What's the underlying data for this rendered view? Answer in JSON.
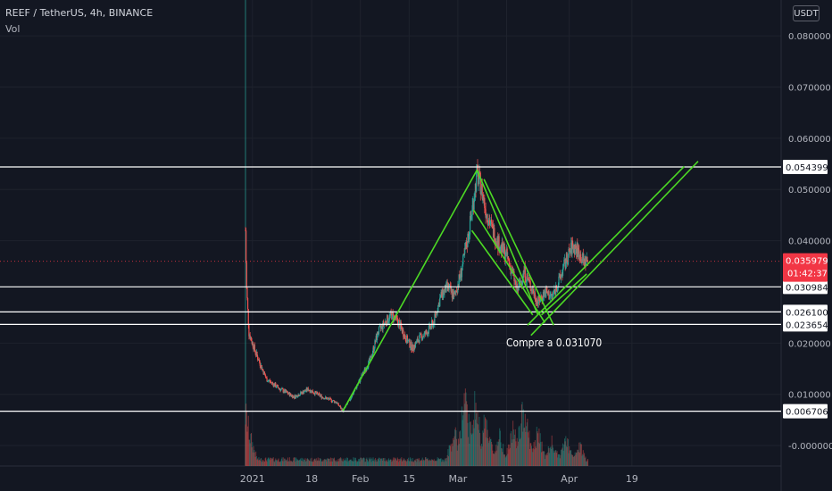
{
  "header": {
    "symbol_line": "REEF / TetherUS, 4h, BINANCE",
    "indicator": "Vol",
    "currency_button": "USDT"
  },
  "annotation": "Compre a 0.031070",
  "chart_data": {
    "type": "candlestick",
    "y_ticks": [
      "0.080000",
      "0.070000",
      "0.060000",
      "0.050000",
      "0.040000",
      "0.020000",
      "0.010000",
      "-0.000000"
    ],
    "y_tick_values": [
      0.08,
      0.07,
      0.06,
      0.05,
      0.04,
      0.02,
      0.01,
      0.0
    ],
    "ylim": [
      -0.004,
      0.087
    ],
    "x_ticks": [
      "2021",
      "18",
      "Feb",
      "15",
      "Mar",
      "15",
      "Apr",
      "19"
    ],
    "price_label": {
      "value": 0.035979,
      "text": "0.035979",
      "countdown": "01:42:37",
      "color": "#f23645"
    },
    "horizontal_levels": [
      {
        "value": 0.054399,
        "text": "0.054399"
      },
      {
        "value": 0.030984,
        "text": "0.030984"
      },
      {
        "value": 0.0261,
        "text": "0.026100"
      },
      {
        "value": 0.023654,
        "text": "0.023654"
      },
      {
        "value": 0.006706,
        "text": "0.006706"
      }
    ],
    "price_path": [
      [
        0,
        0.042
      ],
      [
        0.3,
        0.031
      ],
      [
        1,
        0.022
      ],
      [
        3,
        0.018
      ],
      [
        6,
        0.013
      ],
      [
        10,
        0.011
      ],
      [
        14,
        0.0095
      ],
      [
        18,
        0.011
      ],
      [
        22,
        0.0095
      ],
      [
        26,
        0.0085
      ],
      [
        28,
        0.0068
      ],
      [
        30,
        0.009
      ],
      [
        33,
        0.013
      ],
      [
        36,
        0.017
      ],
      [
        38,
        0.022
      ],
      [
        40,
        0.024
      ],
      [
        42,
        0.0255
      ],
      [
        44,
        0.024
      ],
      [
        46,
        0.021
      ],
      [
        48,
        0.019
      ],
      [
        50,
        0.021
      ],
      [
        52,
        0.022
      ],
      [
        54,
        0.024
      ],
      [
        56,
        0.029
      ],
      [
        58,
        0.031
      ],
      [
        60,
        0.029
      ],
      [
        62,
        0.034
      ],
      [
        64,
        0.041
      ],
      [
        65.5,
        0.048
      ],
      [
        66.5,
        0.053
      ],
      [
        67.5,
        0.051
      ],
      [
        69,
        0.046
      ],
      [
        71,
        0.042
      ],
      [
        73,
        0.039
      ],
      [
        75,
        0.037
      ],
      [
        77,
        0.033
      ],
      [
        78,
        0.03
      ],
      [
        80,
        0.034
      ],
      [
        82,
        0.031
      ],
      [
        84,
        0.028
      ],
      [
        86,
        0.03
      ],
      [
        88,
        0.029
      ],
      [
        90,
        0.032
      ],
      [
        92,
        0.036
      ],
      [
        94,
        0.039
      ],
      [
        95.5,
        0.038
      ],
      [
        97,
        0.036
      ],
      [
        98.5,
        0.035979
      ]
    ],
    "green_lines": [
      {
        "from": [
          28,
          0.0068
        ],
        "to": [
          66.5,
          0.0538
        ]
      },
      {
        "from": [
          66.5,
          0.0538
        ],
        "to": [
          84,
          0.0255
        ]
      },
      {
        "from": [
          68.5,
          0.052
        ],
        "to": [
          88.5,
          0.0235
        ]
      },
      {
        "from": [
          65.5,
          0.046
        ],
        "to": [
          86,
          0.024
        ]
      },
      {
        "from": [
          65,
          0.042
        ],
        "to": [
          82.5,
          0.0255
        ]
      },
      {
        "from": [
          81,
          0.0235
        ],
        "to": [
          126,
          0.0545
        ]
      },
      {
        "from": [
          82,
          0.0215
        ],
        "to": [
          130,
          0.0555
        ]
      },
      {
        "from": [
          85,
          0.0255
        ],
        "to": [
          98,
          0.0335
        ]
      }
    ],
    "date_ticks_days": [
      2,
      19,
      33,
      47,
      61,
      75,
      93,
      111
    ],
    "volume_spikes": [
      [
        0,
        0.8
      ],
      [
        1,
        0.5
      ],
      [
        60,
        0.5
      ],
      [
        63,
        1.0
      ],
      [
        66,
        0.95
      ],
      [
        69,
        0.7
      ],
      [
        73,
        0.45
      ],
      [
        77,
        0.55
      ],
      [
        80,
        0.9
      ],
      [
        84,
        0.5
      ],
      [
        88,
        0.35
      ],
      [
        92,
        0.4
      ],
      [
        96,
        0.3
      ]
    ],
    "colors": {
      "up": "#26a69a",
      "down": "#ef5350",
      "lines": "#4cd924",
      "levels": "#ffffff",
      "grid": "#1e222d",
      "axis_text": "#b2b5be"
    }
  }
}
